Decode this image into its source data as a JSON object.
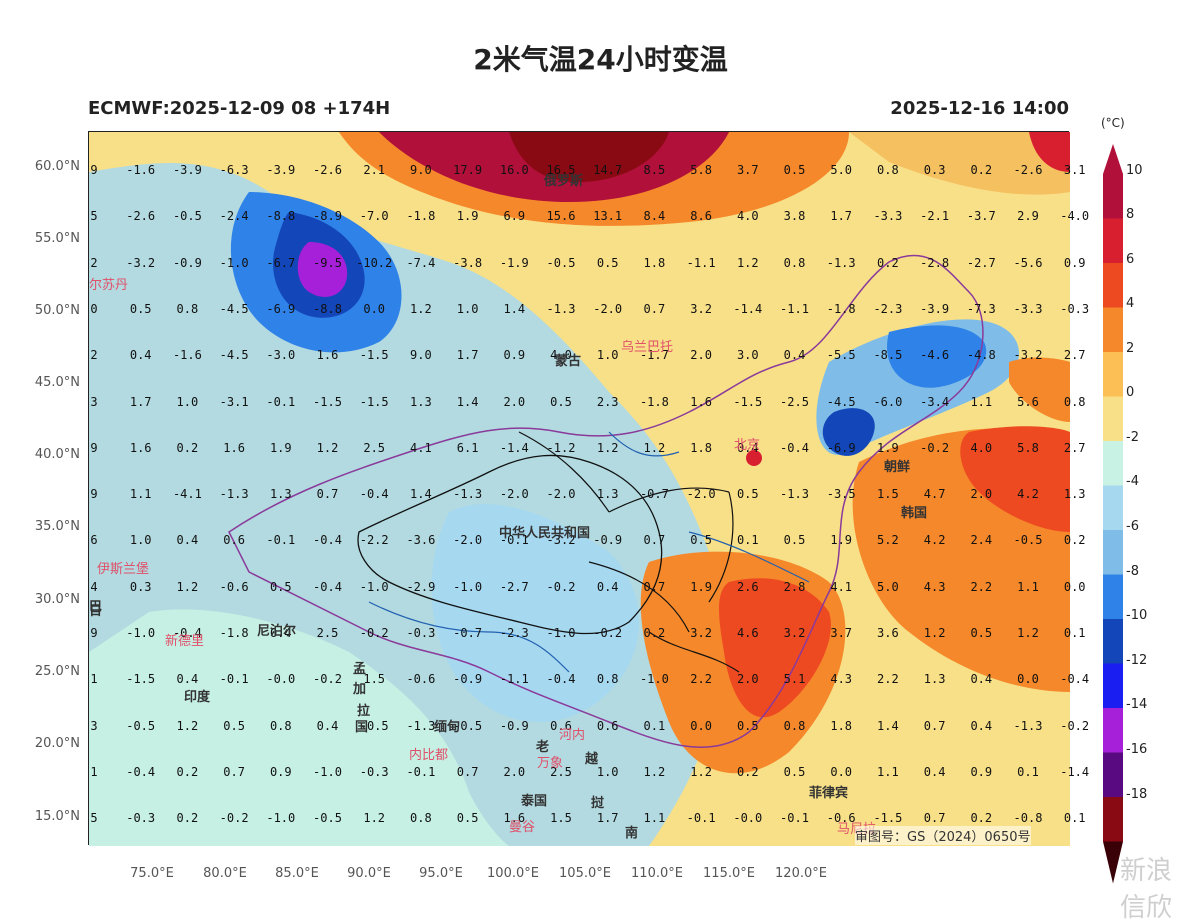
{
  "title": "2米气温24小时变温",
  "subtitle_left": "ECMWF:2025-12-09 08 +174H",
  "subtitle_right": "2025-12-16 14:00",
  "lat_ticks": [
    "60.0°N",
    "55.0°N",
    "50.0°N",
    "45.0°N",
    "40.0°N",
    "35.0°N",
    "30.0°N",
    "25.0°N",
    "20.0°N",
    "15.0°N"
  ],
  "lon_ticks": [
    "75.0°E",
    "80.0°E",
    "85.0°E",
    "90.0°E",
    "95.0°E",
    "100.0°E",
    "105.0°E",
    "110.0°E",
    "115.0°E",
    "120.0°E"
  ],
  "colorbar": {
    "unit": "(°C)",
    "labels": [
      "10",
      "8",
      "6",
      "4",
      "2",
      "0",
      "-2",
      "-4",
      "-6",
      "-8",
      "-10",
      "-12",
      "-14",
      "-16",
      "-18"
    ],
    "colors": [
      "#b0103a",
      "#d81f2f",
      "#ee4a22",
      "#f5882a",
      "#fcbf55",
      "#f8e088",
      "#c8f2e4",
      "#a6d8f0",
      "#7fbde8",
      "#2f82e8",
      "#1346b8",
      "#1a1ef0",
      "#a520d8",
      "#5a0a80",
      "#8a0a14"
    ]
  },
  "grid_values": [
    [
      "9",
      "-1.6",
      "-3.9",
      "-6.3",
      "-3.9",
      "-2.6",
      "2.1",
      "9.0",
      "17.9",
      "16.0",
      "16.5",
      "14.7",
      "8.5",
      "5.8",
      "3.7",
      "0.5",
      "5.0",
      "0.8",
      "0.3",
      "0.2",
      "-2.6",
      "3.1"
    ],
    [
      "5",
      "-2.6",
      "-0.5",
      "-2.4",
      "-8.8",
      "-8.9",
      "-7.0",
      "-1.8",
      "1.9",
      "6.9",
      "15.6",
      "13.1",
      "8.4",
      "8.6",
      "4.0",
      "3.8",
      "1.7",
      "-3.3",
      "-2.1",
      "-3.7",
      "2.9",
      "-4.0"
    ],
    [
      "2",
      "-3.2",
      "-0.9",
      "-1.0",
      "-6.7",
      "-9.5",
      "-10.2",
      "-7.4",
      "-3.8",
      "-1.9",
      "-0.5",
      "0.5",
      "1.8",
      "-1.1",
      "1.2",
      "0.8",
      "-1.3",
      "0.2",
      "-2.8",
      "-2.7",
      "-5.6",
      "0.9"
    ],
    [
      "0",
      "0.5",
      "0.8",
      "-4.5",
      "-6.9",
      "-8.8",
      "0.0",
      "1.2",
      "1.0",
      "1.4",
      "-1.3",
      "-2.0",
      "0.7",
      "3.2",
      "-1.4",
      "-1.1",
      "-1.8",
      "-2.3",
      "-3.9",
      "-7.3",
      "-3.3",
      "-0.3"
    ],
    [
      "2",
      "0.4",
      "-1.6",
      "-4.5",
      "-3.0",
      "1.6",
      "-1.5",
      "9.0",
      "1.7",
      "0.9",
      "4.0",
      "1.0",
      "-1.7",
      "2.0",
      "3.0",
      "0.4",
      "-5.5",
      "-8.5",
      "-4.6",
      "-4.8",
      "-3.2",
      "2.7"
    ],
    [
      "3",
      "1.7",
      "1.0",
      "-3.1",
      "-0.1",
      "-1.5",
      "-1.5",
      "1.3",
      "1.4",
      "2.0",
      "0.5",
      "2.3",
      "-1.8",
      "1.6",
      "-1.5",
      "-2.5",
      "-4.5",
      "-6.0",
      "-3.4",
      "1.1",
      "5.6",
      "0.8"
    ],
    [
      "9",
      "1.6",
      "0.2",
      "1.6",
      "1.9",
      "1.2",
      "2.5",
      "4.1",
      "6.1",
      "-1.4",
      "-1.2",
      "1.2",
      "1.2",
      "1.8",
      "0.4",
      "-0.4",
      "-6.9",
      "1.9",
      "-0.2",
      "4.0",
      "5.8",
      "2.7"
    ],
    [
      "9",
      "1.1",
      "-4.1",
      "-1.3",
      "1.3",
      "0.7",
      "-0.4",
      "1.4",
      "-1.3",
      "-2.0",
      "-2.0",
      "1.3",
      "-0.7",
      "-2.0",
      "0.5",
      "-1.3",
      "-3.5",
      "1.5",
      "4.7",
      "2.0",
      "4.2",
      "1.3"
    ],
    [
      "6",
      "1.0",
      "0.4",
      "0.6",
      "-0.1",
      "-0.4",
      "-2.2",
      "-3.6",
      "-2.0",
      "-0.1",
      "-3.2",
      "-0.9",
      "0.7",
      "0.5",
      "0.1",
      "0.5",
      "1.9",
      "5.2",
      "4.2",
      "2.4",
      "-0.5",
      "0.2"
    ],
    [
      "4",
      "0.3",
      "1.2",
      "-0.6",
      "0.5",
      "-0.4",
      "-1.0",
      "-2.9",
      "-1.0",
      "-2.7",
      "-0.2",
      "0.4",
      "0.7",
      "1.9",
      "2.6",
      "2.8",
      "4.1",
      "5.0",
      "4.3",
      "2.2",
      "1.1",
      "0.0"
    ],
    [
      "9",
      "-1.0",
      "-0.4",
      "-1.8",
      "0.4",
      "2.5",
      "-0.2",
      "-0.3",
      "-0.7",
      "-2.3",
      "-1.0",
      "-0.2",
      "0.2",
      "3.2",
      "4.6",
      "3.2",
      "3.7",
      "3.6",
      "1.2",
      "0.5",
      "1.2",
      "0.1"
    ],
    [
      "1",
      "-1.5",
      "0.4",
      "-0.1",
      "-0.0",
      "-0.2",
      "1.5",
      "-0.6",
      "-0.9",
      "-1.1",
      "-0.4",
      "0.8",
      "-1.0",
      "2.2",
      "2.0",
      "5.1",
      "4.3",
      "2.2",
      "1.3",
      "0.4",
      "0.0",
      "-0.4"
    ],
    [
      "3",
      "-0.5",
      "1.2",
      "0.5",
      "0.8",
      "0.4",
      "-0.5",
      "-1.3",
      "-0.5",
      "-0.9",
      "0.6",
      "0.6",
      "0.1",
      "0.0",
      "0.5",
      "0.8",
      "1.8",
      "1.4",
      "0.7",
      "0.4",
      "-1.3",
      "-0.2"
    ],
    [
      "1",
      "-0.4",
      "0.2",
      "0.7",
      "0.9",
      "-1.0",
      "-0.3",
      "-0.1",
      "0.7",
      "2.0",
      "2.5",
      "1.0",
      "1.2",
      "1.2",
      "0.2",
      "0.5",
      "0.0",
      "1.1",
      "0.4",
      "0.9",
      "0.1",
      "-1.4"
    ],
    [
      "5",
      "-0.3",
      "0.2",
      "-0.2",
      "-1.0",
      "-0.5",
      "1.2",
      "0.8",
      "0.5",
      "1.6",
      "1.5",
      "1.7",
      "1.1",
      "-0.1",
      "-0.0",
      "-0.1",
      "-0.6",
      "-1.5",
      "0.7",
      "0.2",
      "-0.8",
      "0.1"
    ]
  ],
  "places": [
    {
      "name": "俄罗斯",
      "style": "dark"
    },
    {
      "name": "乌兰巴托",
      "style": "pink"
    },
    {
      "name": "蒙古",
      "style": "dark"
    },
    {
      "name": "北京",
      "style": "pink"
    },
    {
      "name": "朝鲜",
      "style": "dark"
    },
    {
      "name": "韩国",
      "style": "dark"
    },
    {
      "name": "中华人民共和国",
      "style": "dark"
    },
    {
      "name": "尔苏丹",
      "style": "pink"
    },
    {
      "name": "伊斯兰堡",
      "style": "pink"
    },
    {
      "name": "新德里",
      "style": "pink"
    },
    {
      "name": "尼泊尔",
      "style": "dark"
    },
    {
      "name": "孟",
      "style": "dark"
    },
    {
      "name": "加",
      "style": "dark"
    },
    {
      "name": "拉",
      "style": "dark"
    },
    {
      "name": "国",
      "style": "dark"
    },
    {
      "name": "印度",
      "style": "dark"
    },
    {
      "name": "缅甸",
      "style": "dark"
    },
    {
      "name": "内比都",
      "style": "pink"
    },
    {
      "name": "河内",
      "style": "pink"
    },
    {
      "name": "老",
      "style": "dark"
    },
    {
      "name": "万象",
      "style": "pink"
    },
    {
      "name": "越",
      "style": "dark"
    },
    {
      "name": "泰国",
      "style": "dark"
    },
    {
      "name": "曼谷",
      "style": "pink"
    },
    {
      "name": "挝",
      "style": "dark"
    },
    {
      "name": "南",
      "style": "dark"
    },
    {
      "name": "菲律宾",
      "style": "dark"
    },
    {
      "name": "马尼拉",
      "style": "pink"
    },
    {
      "name": "巴",
      "style": "dark"
    },
    {
      "name": "日",
      "style": "dark"
    }
  ],
  "review_number": "审图号：GS（2024）0650号",
  "watermark": "新浪 信欣"
}
